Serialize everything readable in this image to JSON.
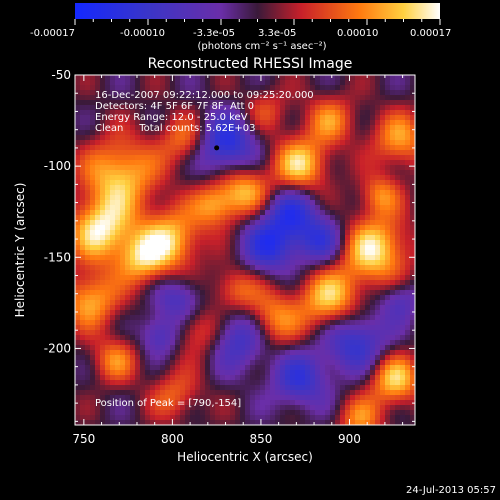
{
  "colorbar": {
    "tick_labels": [
      "-0.00017",
      "-0.00010",
      "-3.3e-05",
      "3.3e-05",
      "0.00010",
      "0.00017"
    ],
    "unit_label": "(photons cm⁻² s⁻¹ asec⁻²)"
  },
  "chart_data": {
    "type": "heatmap",
    "title": "Reconstructed RHESSI Image",
    "xlabel": "Heliocentric X (arcsec)",
    "ylabel": "Heliocentric Y (arcsec)",
    "x_ticks": [
      "750",
      "800",
      "850",
      "900"
    ],
    "y_ticks": [
      "-50",
      "-100",
      "-150",
      "-200"
    ],
    "xlim": [
      745,
      937
    ],
    "ylim": [
      -242,
      -50
    ],
    "color_range": [
      -0.00017,
      0.00017
    ],
    "colormap": "blue-purple-red-yellow-white",
    "annotations": [
      "16-Dec-2007 09:22:12.000 to 09:25:20.000",
      "Detectors: 4F 5F 6F 7F 8F, Att 0",
      "Energy Range: 12.0 - 25.0 keV",
      "Clean     Total counts: 5.62E+03",
      "Position of Peak = [790,-154]"
    ],
    "marker": {
      "x": 825,
      "y": -90
    },
    "grid": false
  },
  "footer": {
    "timestamp": "24-Jul-2013 05:57"
  }
}
